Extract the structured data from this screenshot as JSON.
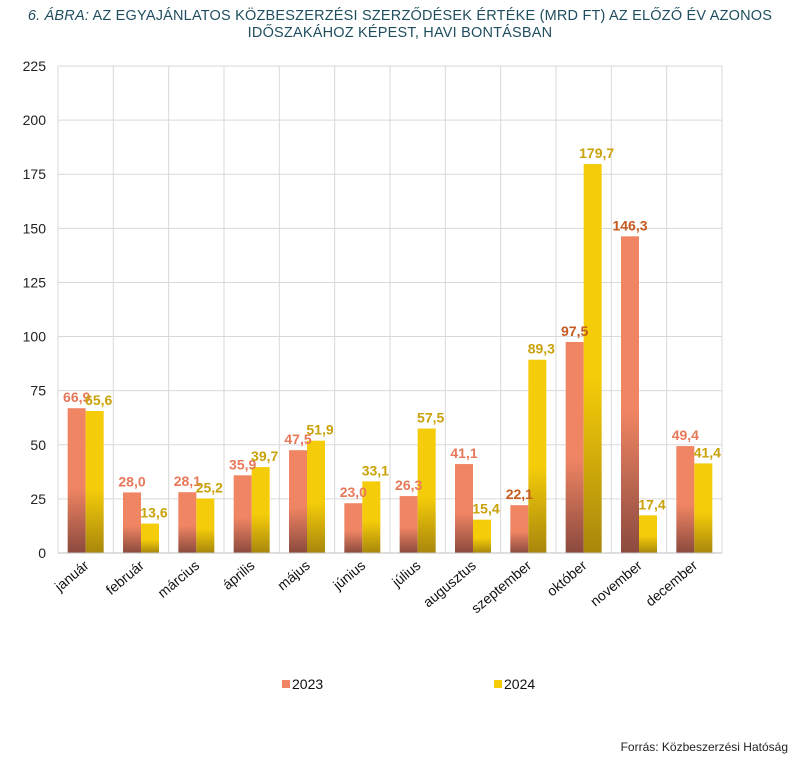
{
  "title": {
    "prefix": "6. ÁBRA:",
    "line1": "AZ EGYAJÁNLATOS KÖZBESZERZÉSI SZERZŐDÉSEK ÉRTÉKE (MRD FT) AZ ELŐZŐ ÉV AZONOS",
    "line2": "IDŐSZAKÁHOZ KÉPEST, HAVI BONTÁSBAN"
  },
  "source": "Forrás: Közbeszerzési Hatóság",
  "colors": {
    "s2023_top": "#f08563",
    "s2023_bottom": "#8b4a3e",
    "s2024_top": "#f5cc0a",
    "s2024_bottom": "#a8870c",
    "label2023": "#e8785a",
    "label2023_dark": "#c45a1e",
    "label2024": "#c9a20a",
    "grid": "#d9d9d9"
  },
  "chart_data": {
    "type": "bar",
    "title": "6. ÁBRA: AZ EGYAJÁNLATOS KÖZBESZERZÉSI SZERZŐDÉSEK ÉRTÉKE (MRD FT) AZ ELŐZŐ ÉV AZONOS IDŐSZAKÁHOZ KÉPEST, HAVI BONTÁSBAN",
    "categories": [
      "január",
      "február",
      "március",
      "április",
      "május",
      "június",
      "július",
      "augusztus",
      "szeptember",
      "október",
      "november",
      "december"
    ],
    "series": [
      {
        "name": "2023",
        "values": [
          66.9,
          28.0,
          28.1,
          35.9,
          47.5,
          23.0,
          26.3,
          41.1,
          22.1,
          97.5,
          146.3,
          49.4
        ],
        "labels": [
          "66,9",
          "28,0",
          "28,1",
          "35,9",
          "47,5",
          "23,0",
          "26,3",
          "41,1",
          "22,1",
          "97,5",
          "146,3",
          "49,4"
        ]
      },
      {
        "name": "2024",
        "values": [
          65.6,
          13.6,
          25.2,
          39.7,
          51.9,
          33.1,
          57.5,
          15.4,
          89.3,
          179.7,
          17.4,
          41.4
        ],
        "labels": [
          "65,6",
          "13,6",
          "25,2",
          "39,7",
          "51,9",
          "33,1",
          "57,5",
          "15,4",
          "89,3",
          "179,7",
          "17,4",
          "41,4"
        ]
      }
    ],
    "ylim": [
      0,
      225
    ],
    "yticks": [
      "0",
      "25",
      "50",
      "75",
      "100",
      "125",
      "150",
      "175",
      "200",
      "225"
    ],
    "grid": true,
    "legend": "bottom"
  }
}
